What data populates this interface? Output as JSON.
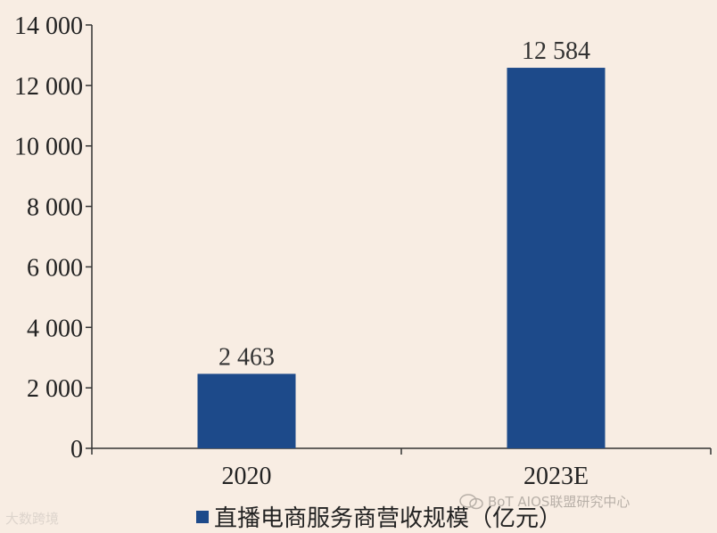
{
  "chart_data": {
    "type": "bar",
    "categories": [
      "2020",
      "2023E"
    ],
    "series": [
      {
        "name": "直播电商服务商营收规模（亿元）",
        "values": [
          2463,
          12584
        ]
      }
    ],
    "data_labels": [
      "2 463",
      "12 584"
    ],
    "ylim": [
      0,
      14000
    ],
    "yticks": [
      0,
      2000,
      4000,
      6000,
      8000,
      10000,
      12000,
      14000
    ],
    "ytick_labels": [
      "0",
      "2 000",
      "4 000",
      "6 000",
      "8 000",
      "10 000",
      "12 000",
      "14 000"
    ],
    "legend_position": "bottom",
    "grid": false,
    "bar_color": "#1d4a8a"
  },
  "legend": {
    "label": "直播电商服务商营收规模（亿元）"
  },
  "watermarks": {
    "right": "BoT AIOS联盟研究中心",
    "left": "大数跨境"
  }
}
